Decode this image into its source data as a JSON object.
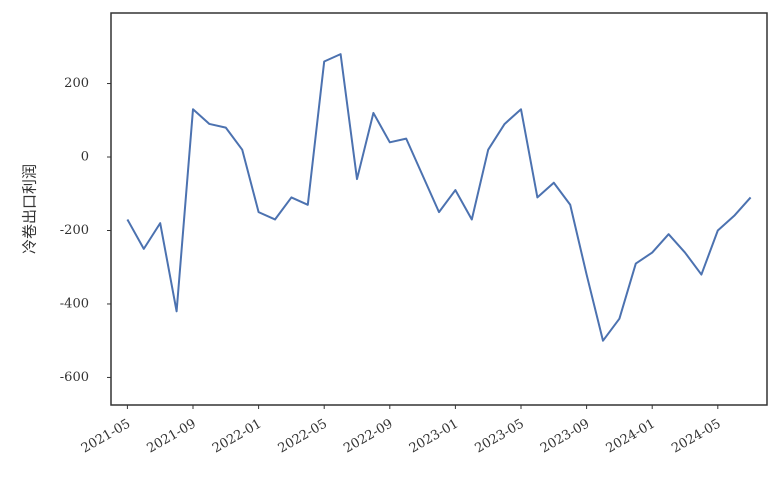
{
  "chart_data": {
    "type": "line",
    "y_label": "冷卷出口利润",
    "x": [
      "2021-05",
      "2021-06",
      "2021-07",
      "2021-08",
      "2021-09",
      "2021-10",
      "2021-11",
      "2021-12",
      "2022-01",
      "2022-02",
      "2022-03",
      "2022-04",
      "2022-05",
      "2022-06",
      "2022-07",
      "2022-08",
      "2022-09",
      "2022-10",
      "2022-11",
      "2022-12",
      "2023-01",
      "2023-02",
      "2023-03",
      "2023-04",
      "2023-05",
      "2023-06",
      "2023-07",
      "2023-08",
      "2023-09",
      "2023-10",
      "2023-11",
      "2023-12",
      "2024-01",
      "2024-02",
      "2024-03",
      "2024-04",
      "2024-05",
      "2024-06",
      "2024-07"
    ],
    "series": [
      {
        "name": "冷卷出口利润",
        "color": "#4c72b0",
        "values": [
          -170,
          -250,
          -180,
          -420,
          130,
          90,
          80,
          20,
          -150,
          -170,
          -110,
          -130,
          260,
          280,
          -60,
          120,
          40,
          50,
          -50,
          -150,
          -90,
          -170,
          20,
          90,
          130,
          -110,
          -70,
          -130,
          -320,
          -500,
          -440,
          -290,
          -260,
          -210,
          -260,
          -320,
          -200,
          -160,
          -110
        ]
      }
    ],
    "xlim": [
      "2021-04",
      "2024-08"
    ],
    "xticks": [
      "2021-05",
      "2021-09",
      "2022-01",
      "2022-05",
      "2022-09",
      "2023-01",
      "2023-05",
      "2023-09",
      "2024-01",
      "2024-05"
    ],
    "ylim": [
      -675,
      392
    ],
    "yticks": [
      -600,
      -400,
      -200,
      0,
      200
    ],
    "grid": false
  }
}
